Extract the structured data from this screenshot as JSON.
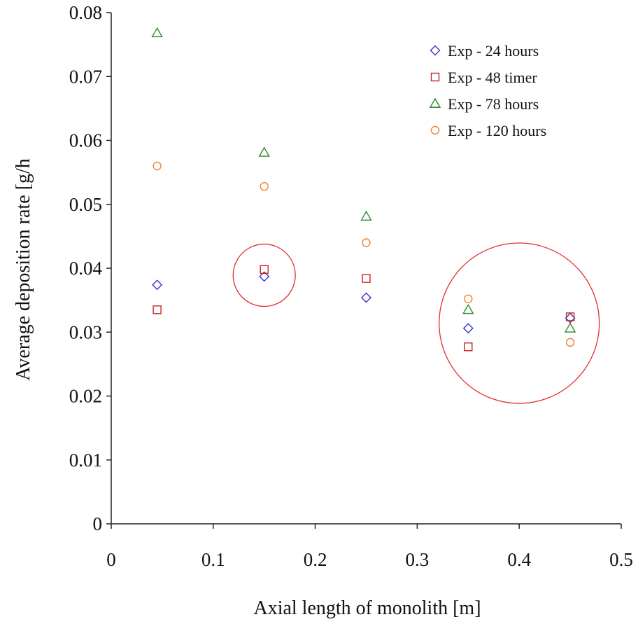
{
  "chart_data": {
    "type": "scatter",
    "title": "",
    "xlabel": "Axial length of monolith [m]",
    "ylabel": "Average deposition rate [g/h",
    "xlim": [
      0,
      0.5
    ],
    "ylim": [
      0,
      0.08
    ],
    "xticks": [
      "0",
      "0.1",
      "0.2",
      "0.3",
      "0.4",
      "0.5"
    ],
    "yticks": [
      "0",
      "0.01",
      "0.02",
      "0.03",
      "0.04",
      "0.05",
      "0.06",
      "0.07",
      "0.08"
    ],
    "grid": false,
    "legend_position": "top-right",
    "series": [
      {
        "name": "Exp - 24 hours",
        "marker": "diamond",
        "color": "#3333cc",
        "points": [
          [
            0.045,
            0.0374
          ],
          [
            0.15,
            0.0387
          ],
          [
            0.25,
            0.0354
          ],
          [
            0.35,
            0.0306
          ],
          [
            0.45,
            0.0322
          ]
        ]
      },
      {
        "name": "Exp - 48 timer",
        "marker": "square",
        "color": "#cc2222",
        "points": [
          [
            0.045,
            0.0335
          ],
          [
            0.15,
            0.0398
          ],
          [
            0.25,
            0.0384
          ],
          [
            0.35,
            0.0277
          ],
          [
            0.45,
            0.0324
          ]
        ]
      },
      {
        "name": "Exp - 78 hours",
        "marker": "triangle",
        "color": "#2e8b2e",
        "points": [
          [
            0.045,
            0.0768
          ],
          [
            0.15,
            0.0581
          ],
          [
            0.25,
            0.0481
          ],
          [
            0.35,
            0.0335
          ],
          [
            0.45,
            0.0306
          ]
        ]
      },
      {
        "name": "Exp - 120 hours",
        "marker": "circle",
        "color": "#f08030",
        "points": [
          [
            0.045,
            0.056
          ],
          [
            0.15,
            0.0528
          ],
          [
            0.25,
            0.044
          ],
          [
            0.35,
            0.0352
          ],
          [
            0.45,
            0.0284
          ]
        ]
      }
    ],
    "annotations": [
      {
        "type": "circle",
        "center": [
          0.15,
          0.0389
        ],
        "radius_x": 0.0305,
        "color": "#e03030"
      },
      {
        "type": "circle",
        "center": [
          0.4,
          0.0314
        ],
        "radius_x": 0.0785,
        "color": "#e03030"
      }
    ]
  }
}
